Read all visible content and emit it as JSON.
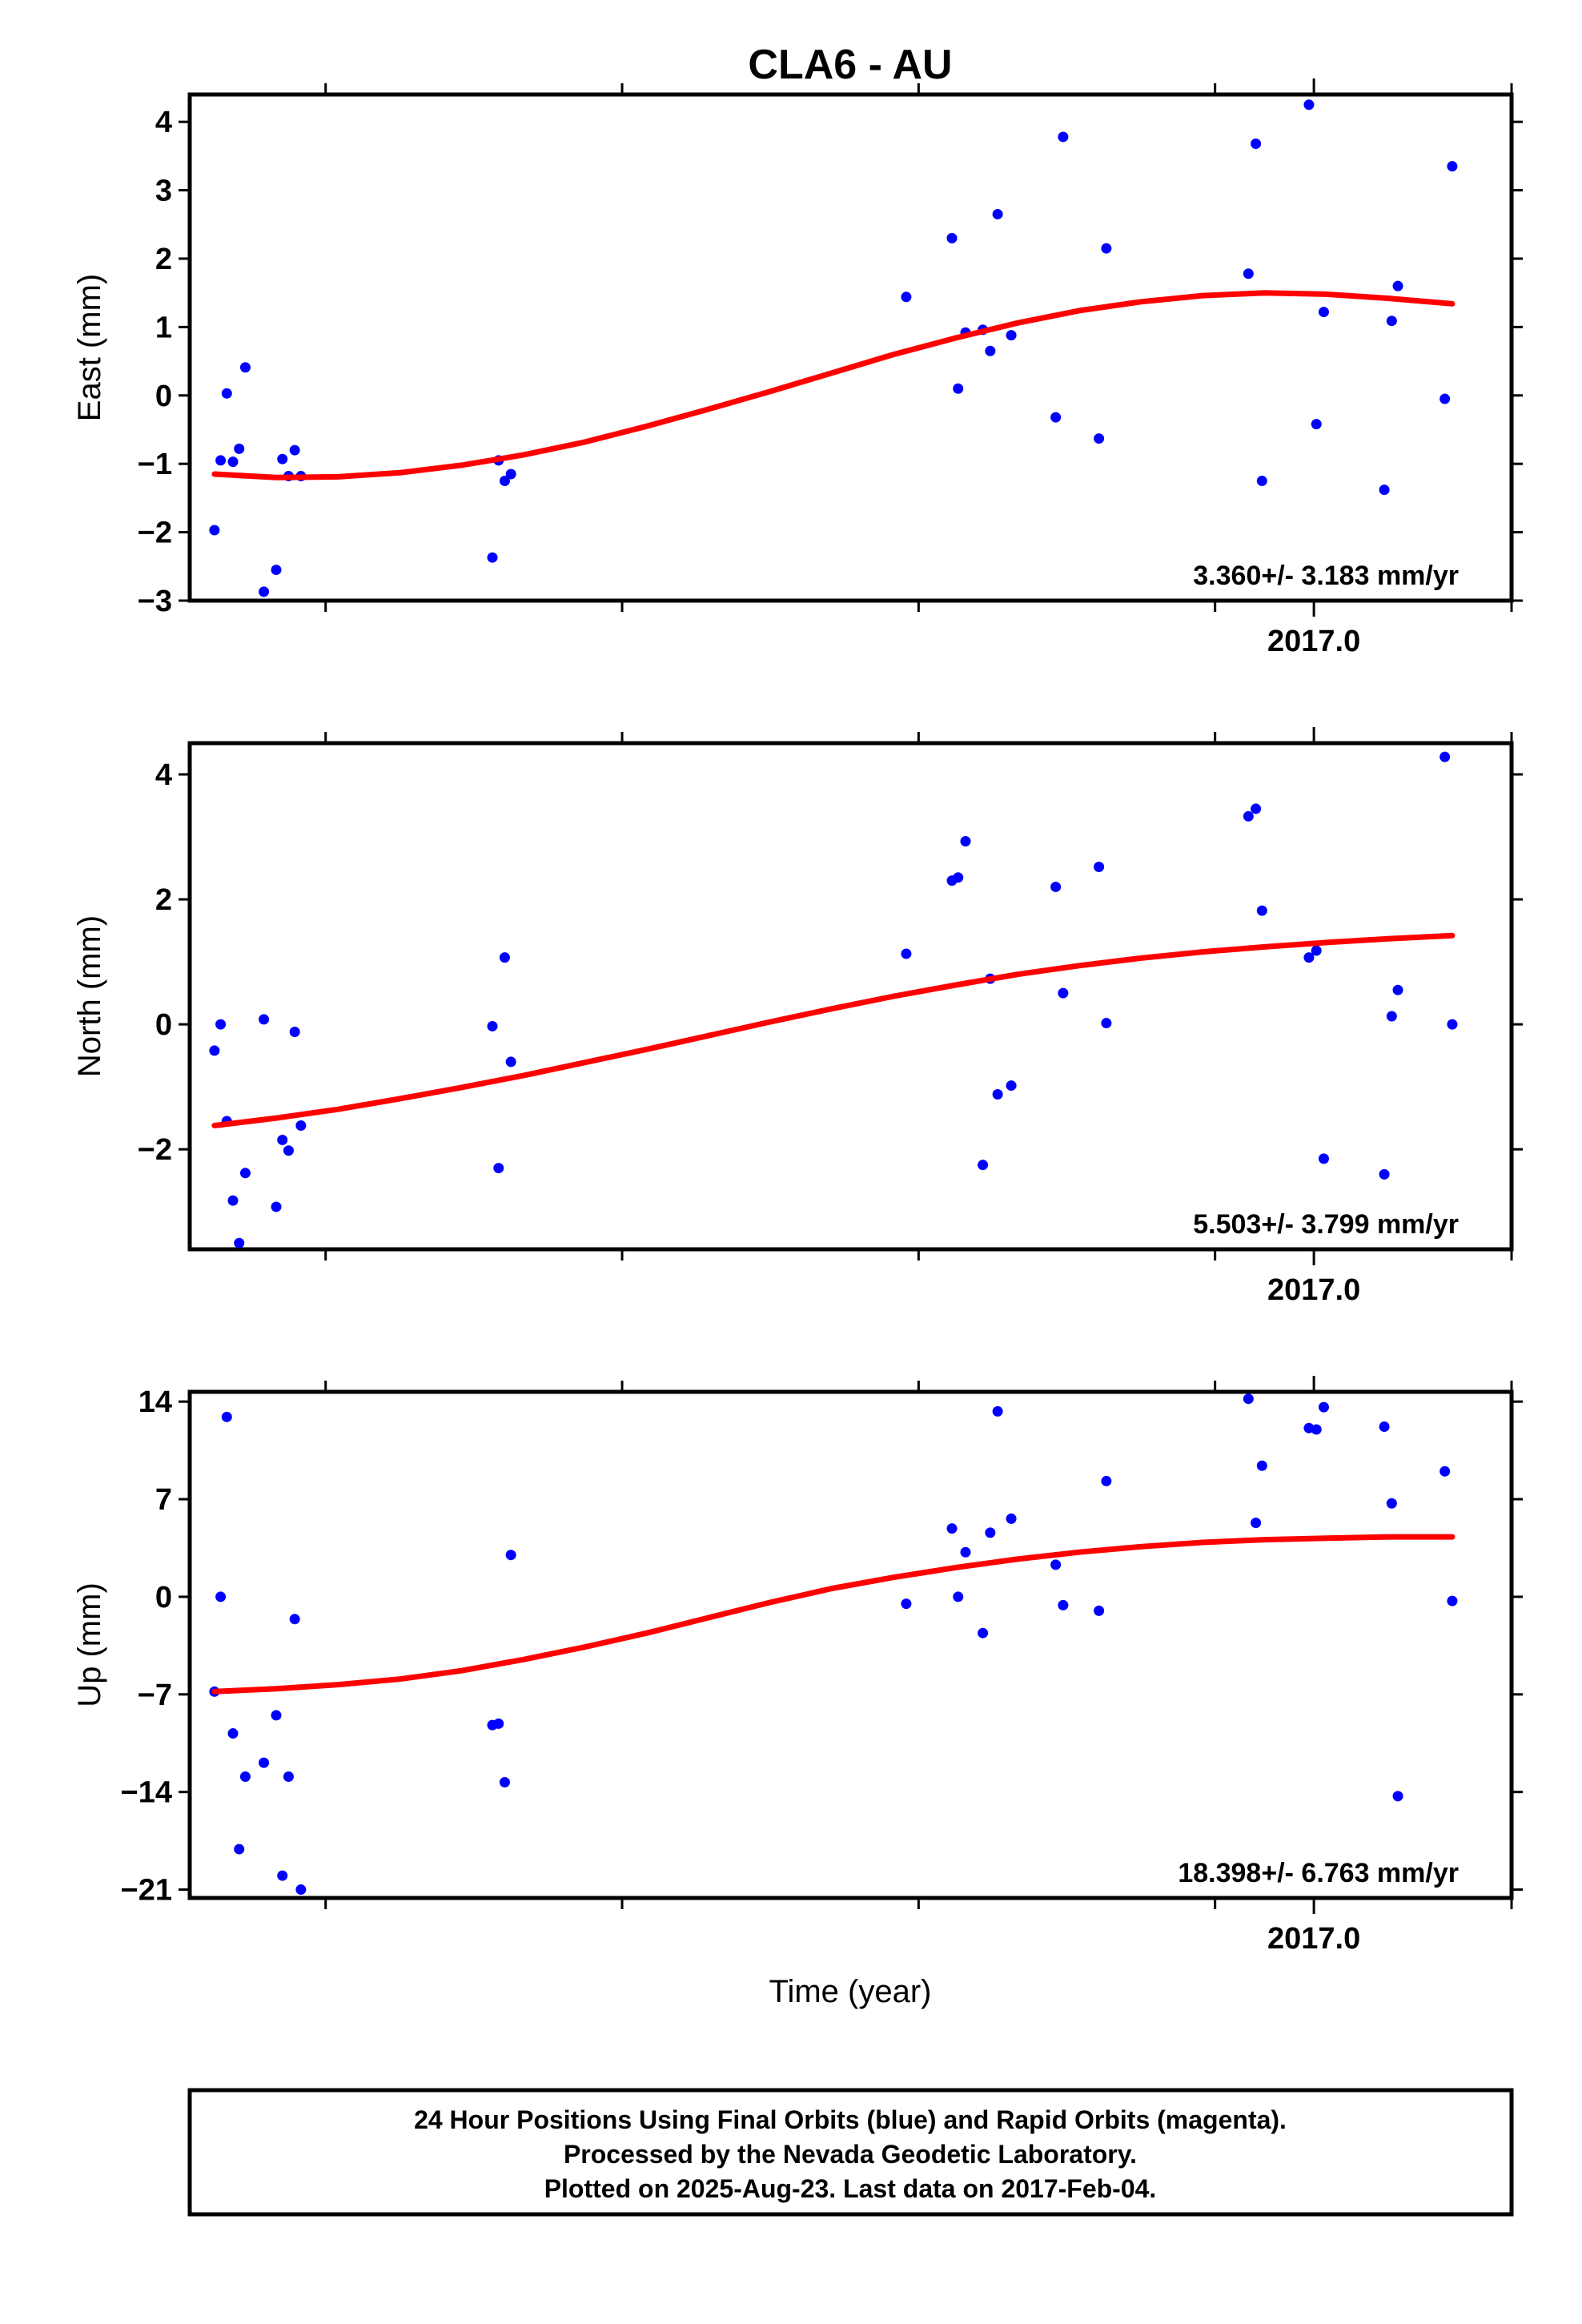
{
  "title": "CLA6 - AU",
  "x_axis_label": "Time (year)",
  "colors": {
    "final_orbits": "#0000ff",
    "fit_line": "#ff0000",
    "frame": "#000000"
  },
  "footer": {
    "line1": "24 Hour Positions Using Final Orbits (blue) and Rapid Orbits (magenta).",
    "line2": "Processed by the Nevada Geodetic Laboratory.",
    "line3": "Plotted on 2025-Aug-23. Last data on 2017-Feb-04."
  },
  "chart_data": [
    {
      "type": "scatter",
      "panel": "east",
      "ylabel": "East (mm)",
      "rate_label": "3.360+/- 3.183 mm/yr",
      "xlim": [
        2016.09,
        2017.16
      ],
      "ylim": [
        -3,
        4.4
      ],
      "yticks": [
        4,
        3,
        2,
        1,
        0,
        -1,
        -2,
        -3
      ],
      "ytick_labels": [
        "4",
        "3",
        "2",
        "1",
        "0",
        "−1",
        "−2",
        "−3"
      ],
      "xtick_labels": [
        {
          "value": 2017.0,
          "label": "2017.0"
        }
      ],
      "xticks_minor": [
        2016.2,
        2016.44,
        2016.68,
        2016.92,
        2017.16
      ],
      "grid": false,
      "series": [
        {
          "x": [
            2016.11,
            2016.115,
            2016.12,
            2016.125,
            2016.13,
            2016.135,
            2016.15,
            2016.16,
            2016.165,
            2016.17,
            2016.175,
            2016.18,
            2016.335,
            2016.34,
            2016.345,
            2016.35,
            2016.67,
            2016.707,
            2016.712,
            2016.718,
            2016.732,
            2016.738,
            2016.744,
            2016.755,
            2016.791,
            2016.797,
            2016.826,
            2016.832,
            2016.947,
            2016.953,
            2016.958,
            2016.996,
            2017.002,
            2017.008,
            2017.057,
            2017.063,
            2017.068,
            2017.106,
            2017.112
          ],
          "y": [
            -1.97,
            -0.95,
            0.03,
            -0.97,
            -0.78,
            0.41,
            -2.87,
            -2.55,
            -0.93,
            -1.18,
            -0.8,
            -1.18,
            -2.37,
            -0.95,
            -1.25,
            -1.15,
            1.44,
            2.3,
            0.1,
            0.92,
            0.96,
            0.65,
            2.65,
            0.88,
            -0.32,
            3.78,
            -0.63,
            2.15,
            1.78,
            3.68,
            -1.25,
            4.25,
            -0.42,
            1.22,
            -1.38,
            1.09,
            1.6,
            -0.05,
            3.35
          ]
        }
      ],
      "fit": {
        "x": [
          2016.11,
          2016.16,
          2016.21,
          2016.26,
          2016.31,
          2016.36,
          2016.41,
          2016.46,
          2016.51,
          2016.56,
          2016.61,
          2016.66,
          2016.71,
          2016.76,
          2016.81,
          2016.86,
          2016.91,
          2016.96,
          2017.01,
          2017.06,
          2017.112
        ],
        "y": [
          -1.15,
          -1.2,
          -1.19,
          -1.13,
          -1.02,
          -0.87,
          -0.68,
          -0.45,
          -0.2,
          0.06,
          0.33,
          0.6,
          0.84,
          1.06,
          1.24,
          1.37,
          1.46,
          1.5,
          1.48,
          1.42,
          1.34
        ]
      }
    },
    {
      "type": "scatter",
      "panel": "north",
      "ylabel": "North (mm)",
      "rate_label": "5.503+/- 3.799 mm/yr",
      "xlim": [
        2016.09,
        2017.16
      ],
      "ylim": [
        -3.6,
        4.5
      ],
      "yticks": [
        4,
        2,
        0,
        -2
      ],
      "ytick_labels": [
        "4",
        "2",
        "0",
        "−2"
      ],
      "xtick_labels": [
        {
          "value": 2017.0,
          "label": "2017.0"
        }
      ],
      "xticks_minor": [
        2016.2,
        2016.44,
        2016.68,
        2016.92,
        2017.16
      ],
      "grid": false,
      "series": [
        {
          "x": [
            2016.11,
            2016.115,
            2016.12,
            2016.125,
            2016.13,
            2016.135,
            2016.15,
            2016.16,
            2016.165,
            2016.17,
            2016.175,
            2016.18,
            2016.335,
            2016.34,
            2016.345,
            2016.35,
            2016.67,
            2016.707,
            2016.712,
            2016.718,
            2016.732,
            2016.738,
            2016.744,
            2016.755,
            2016.791,
            2016.797,
            2016.826,
            2016.832,
            2016.947,
            2016.953,
            2016.958,
            2016.996,
            2017.002,
            2017.008,
            2017.057,
            2017.063,
            2017.068,
            2017.106,
            2017.112
          ],
          "y": [
            -0.42,
            0.0,
            -1.55,
            -2.82,
            -3.5,
            -2.38,
            0.08,
            -2.92,
            -1.85,
            -2.02,
            -0.12,
            -1.62,
            -0.03,
            -2.3,
            1.07,
            -0.6,
            1.13,
            2.3,
            2.35,
            2.93,
            -2.25,
            0.73,
            -1.12,
            -0.98,
            2.2,
            0.5,
            2.52,
            0.02,
            3.33,
            3.45,
            1.82,
            1.07,
            1.18,
            -2.15,
            -2.4,
            0.13,
            0.55,
            4.28,
            0.0
          ]
        }
      ],
      "fit": {
        "x": [
          2016.11,
          2016.16,
          2016.21,
          2016.26,
          2016.31,
          2016.36,
          2016.41,
          2016.46,
          2016.51,
          2016.56,
          2016.61,
          2016.66,
          2016.71,
          2016.76,
          2016.81,
          2016.86,
          2016.91,
          2016.96,
          2017.01,
          2017.06,
          2017.112
        ],
        "y": [
          -1.62,
          -1.5,
          -1.36,
          -1.19,
          -1.01,
          -0.82,
          -0.61,
          -0.4,
          -0.18,
          0.04,
          0.25,
          0.45,
          0.63,
          0.8,
          0.94,
          1.06,
          1.16,
          1.24,
          1.31,
          1.37,
          1.42
        ]
      }
    },
    {
      "type": "scatter",
      "panel": "up",
      "ylabel": "Up (mm)",
      "rate_label": "18.398+/- 6.763 mm/yr",
      "xlim": [
        2016.09,
        2017.16
      ],
      "ylim": [
        -21.6,
        14.7
      ],
      "yticks": [
        14,
        7,
        0,
        -7,
        -14,
        -21
      ],
      "ytick_labels": [
        "14",
        "7",
        "0",
        "−7",
        "−14",
        "−21"
      ],
      "xtick_labels": [
        {
          "value": 2017.0,
          "label": "2017.0"
        }
      ],
      "xticks_minor": [
        2016.2,
        2016.44,
        2016.68,
        2016.92,
        2017.16
      ],
      "grid": false,
      "series": [
        {
          "x": [
            2016.11,
            2016.115,
            2016.12,
            2016.125,
            2016.13,
            2016.135,
            2016.15,
            2016.16,
            2016.165,
            2016.17,
            2016.175,
            2016.18,
            2016.335,
            2016.34,
            2016.345,
            2016.35,
            2016.67,
            2016.707,
            2016.712,
            2016.718,
            2016.732,
            2016.738,
            2016.744,
            2016.755,
            2016.791,
            2016.797,
            2016.826,
            2016.832,
            2016.947,
            2016.953,
            2016.958,
            2016.996,
            2017.002,
            2017.008,
            2017.057,
            2017.063,
            2017.068,
            2017.106,
            2017.112
          ],
          "y": [
            -6.8,
            0.0,
            12.9,
            -9.8,
            -18.1,
            -12.9,
            -11.9,
            -8.5,
            -20.0,
            -12.9,
            -1.6,
            -21.0,
            -9.2,
            -9.1,
            -13.3,
            3.0,
            -0.5,
            4.9,
            0.0,
            3.2,
            -2.6,
            4.6,
            13.3,
            5.6,
            2.3,
            -0.6,
            -1.0,
            8.3,
            14.2,
            5.3,
            9.4,
            12.1,
            12.0,
            13.6,
            12.2,
            6.7,
            -14.3,
            9.0,
            -0.3
          ]
        }
      ],
      "fit": {
        "x": [
          2016.11,
          2016.16,
          2016.21,
          2016.26,
          2016.31,
          2016.36,
          2016.41,
          2016.46,
          2016.51,
          2016.56,
          2016.61,
          2016.66,
          2016.71,
          2016.76,
          2016.81,
          2016.86,
          2016.91,
          2016.96,
          2017.01,
          2017.06,
          2017.112
        ],
        "y": [
          -6.8,
          -6.6,
          -6.3,
          -5.9,
          -5.3,
          -4.5,
          -3.6,
          -2.6,
          -1.5,
          -0.4,
          0.6,
          1.4,
          2.1,
          2.7,
          3.2,
          3.6,
          3.9,
          4.1,
          4.2,
          4.3,
          4.3
        ]
      }
    }
  ]
}
